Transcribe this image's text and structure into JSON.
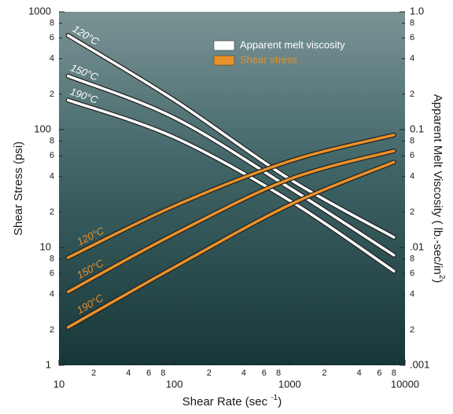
{
  "chart_data": {
    "type": "line",
    "x_label": [
      "Shear Rate (sec ",
      "-1",
      ")"
    ],
    "y_label": "Shear Stress (psi)",
    "y2_label": [
      "Apparent Melt Viscosity ( lb.-sec/in",
      "2",
      ")"
    ],
    "log_x": true,
    "log_y": true,
    "log_y2": true,
    "xlim": [
      10,
      10000
    ],
    "ylim": [
      1,
      1000
    ],
    "y2lim": [
      0.001,
      1
    ],
    "xticks": [
      10,
      {
        "value": 20,
        "label": "2"
      },
      {
        "value": 40,
        "label": "4"
      },
      {
        "value": 60,
        "label": "6"
      },
      {
        "value": 80,
        "label": "8"
      },
      100,
      {
        "value": 200,
        "label": "2"
      },
      {
        "value": 400,
        "label": "4"
      },
      {
        "value": 600,
        "label": "6"
      },
      {
        "value": 800,
        "label": "8"
      },
      1000,
      {
        "value": 2000,
        "label": "2"
      },
      {
        "value": 4000,
        "label": "4"
      },
      {
        "value": 6000,
        "label": "6"
      },
      {
        "value": 8000,
        "label": "8"
      },
      10000
    ],
    "yticks": [
      1,
      {
        "value": 2,
        "label": "2"
      },
      {
        "value": 4,
        "label": "4"
      },
      {
        "value": 6,
        "label": "6"
      },
      {
        "value": 8,
        "label": "8"
      },
      10,
      {
        "value": 20,
        "label": "2"
      },
      {
        "value": 40,
        "label": "4"
      },
      {
        "value": 60,
        "label": "6"
      },
      {
        "value": 80,
        "label": "8"
      },
      100,
      {
        "value": 200,
        "label": "2"
      },
      {
        "value": 400,
        "label": "4"
      },
      {
        "value": 600,
        "label": "6"
      },
      {
        "value": 800,
        "label": "8"
      },
      1000
    ],
    "y2ticks": [
      {
        "value": 0.001,
        "label": ".001"
      },
      {
        "value": 0.002,
        "label": "2"
      },
      {
        "value": 0.004,
        "label": "4"
      },
      {
        "value": 0.006,
        "label": "6"
      },
      {
        "value": 0.008,
        "label": "8"
      },
      {
        "value": 0.01,
        "label": ".01"
      },
      {
        "value": 0.02,
        "label": "2"
      },
      {
        "value": 0.04,
        "label": "4"
      },
      {
        "value": 0.06,
        "label": "6"
      },
      {
        "value": 0.08,
        "label": "8"
      },
      0.1,
      {
        "value": 0.2,
        "label": "2"
      },
      {
        "value": 0.4,
        "label": "4"
      },
      {
        "value": 0.6,
        "label": "6"
      },
      {
        "value": 0.8,
        "label": "8"
      },
      {
        "value": 1,
        "label": "1.0"
      }
    ],
    "legend": [
      {
        "name": "Apparent melt viscosity",
        "color": "#ffffff"
      },
      {
        "name": "Shear stress",
        "color": "#e8912a"
      }
    ],
    "series": [
      {
        "name": "120°C",
        "legend": 0,
        "axis": "y2",
        "x": [
          12,
          100,
          1000,
          8000
        ],
        "values": [
          0.63,
          0.178,
          0.038,
          0.0122
        ]
      },
      {
        "name": "150°C",
        "legend": 0,
        "axis": "y2",
        "x": [
          12,
          100,
          1000,
          8000
        ],
        "values": [
          0.285,
          0.126,
          0.032,
          0.0086
        ]
      },
      {
        "name": "190°C",
        "legend": 0,
        "axis": "y2",
        "x": [
          12,
          100,
          1000,
          8000
        ],
        "values": [
          0.178,
          0.086,
          0.025,
          0.0063
        ]
      },
      {
        "name": "120°C",
        "legend": 1,
        "axis": "y",
        "x": [
          12,
          100,
          1000,
          8000
        ],
        "values": [
          8.2,
          22.5,
          54,
          90
        ]
      },
      {
        "name": "150°C",
        "legend": 1,
        "axis": "y",
        "x": [
          12,
          100,
          1000,
          8000
        ],
        "values": [
          4.2,
          13,
          38,
          66
        ]
      },
      {
        "name": "190°C",
        "legend": 1,
        "axis": "y",
        "x": [
          12,
          100,
          1000,
          8000
        ],
        "values": [
          2.1,
          6.8,
          23,
          53
        ]
      }
    ]
  }
}
